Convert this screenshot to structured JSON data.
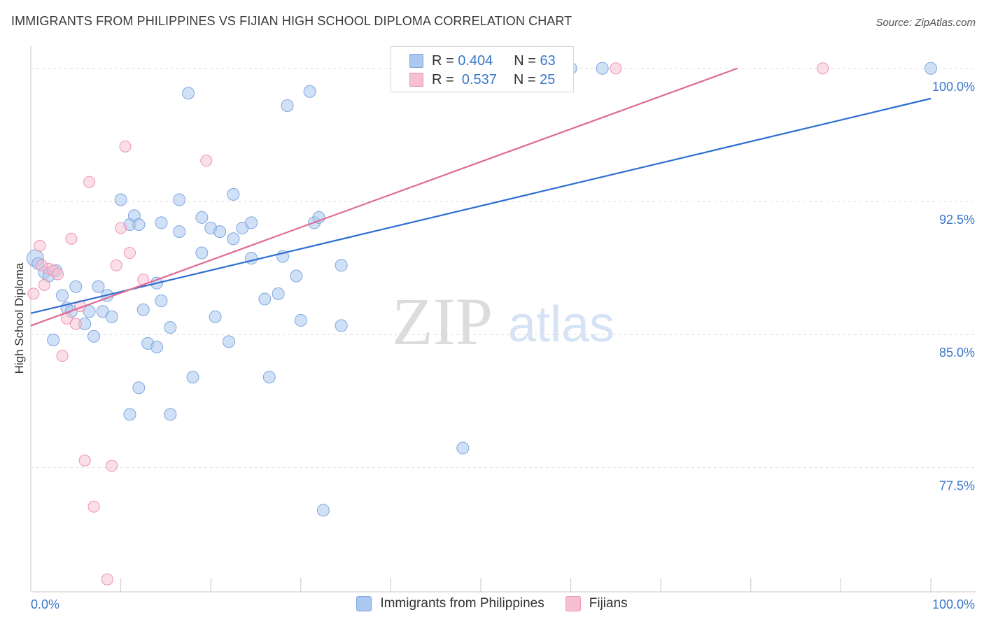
{
  "title": "IMMIGRANTS FROM PHILIPPINES VS FIJIAN HIGH SCHOOL DIPLOMA CORRELATION CHART",
  "source": "Source: ZipAtlas.com",
  "watermark": {
    "zip": "ZIP",
    "atlas": "atlas"
  },
  "legend": {
    "r_label": "R =",
    "n_label": "N =",
    "series1": {
      "r": "0.404",
      "n": "63"
    },
    "series2": {
      "r": "0.537",
      "n": "25"
    }
  },
  "colors": {
    "blue_fill": "#aac8f0",
    "blue_stroke": "#7fa6dd",
    "blue_line": "#2f6fd0",
    "pink_fill": "#f7c0d2",
    "pink_stroke": "#ec93b3",
    "pink_line": "#e06a93",
    "tick_label": "#3a78c9",
    "grid": "#dddddd"
  },
  "chart_data": {
    "type": "scatter",
    "title": "IMMIGRANTS FROM PHILIPPINES VS FIJIAN HIGH SCHOOL DIPLOMA CORRELATION CHART",
    "xlabel": "",
    "ylabel": "High School Diploma",
    "xlim": [
      0,
      100
    ],
    "ylim": [
      70.5,
      100.7
    ],
    "x_tick_labels": [
      "0.0%",
      "100.0%"
    ],
    "y_ticks": [
      77.5,
      85.0,
      92.5,
      100.0
    ],
    "y_tick_labels": [
      "77.5%",
      "85.0%",
      "92.5%",
      "100.0%"
    ],
    "grid": true,
    "legend_position": "top-center",
    "series": [
      {
        "name": "Immigrants from Philippines",
        "r": 0.404,
        "n": 63,
        "trend": {
          "x": [
            0,
            100
          ],
          "y": [
            86.2,
            98.3
          ]
        },
        "points": [
          {
            "x": 0.5,
            "y": 89.3,
            "big": true
          },
          {
            "x": 1.5,
            "y": 88.5
          },
          {
            "x": 2.0,
            "y": 88.3
          },
          {
            "x": 2.8,
            "y": 88.6
          },
          {
            "x": 3.5,
            "y": 87.2
          },
          {
            "x": 4.0,
            "y": 86.5
          },
          {
            "x": 4.5,
            "y": 86.3
          },
          {
            "x": 5.0,
            "y": 87.7
          },
          {
            "x": 6.0,
            "y": 85.6
          },
          {
            "x": 6.5,
            "y": 86.3
          },
          {
            "x": 7.0,
            "y": 84.9
          },
          {
            "x": 7.5,
            "y": 87.7
          },
          {
            "x": 8.0,
            "y": 86.3
          },
          {
            "x": 8.5,
            "y": 87.2
          },
          {
            "x": 9.0,
            "y": 86.0
          },
          {
            "x": 2.5,
            "y": 84.7
          },
          {
            "x": 10.0,
            "y": 92.6
          },
          {
            "x": 11.0,
            "y": 91.2
          },
          {
            "x": 11.5,
            "y": 91.7
          },
          {
            "x": 12.0,
            "y": 91.2
          },
          {
            "x": 12.5,
            "y": 86.4
          },
          {
            "x": 14.0,
            "y": 87.9
          },
          {
            "x": 14.5,
            "y": 86.9
          },
          {
            "x": 14.5,
            "y": 91.3
          },
          {
            "x": 15.5,
            "y": 85.4
          },
          {
            "x": 13.0,
            "y": 84.5
          },
          {
            "x": 14.0,
            "y": 84.3
          },
          {
            "x": 11.0,
            "y": 80.5
          },
          {
            "x": 12.0,
            "y": 82.0
          },
          {
            "x": 15.5,
            "y": 80.5
          },
          {
            "x": 16.5,
            "y": 92.6
          },
          {
            "x": 16.5,
            "y": 90.8
          },
          {
            "x": 17.5,
            "y": 98.6
          },
          {
            "x": 18.0,
            "y": 82.6
          },
          {
            "x": 19.0,
            "y": 91.6
          },
          {
            "x": 19.0,
            "y": 89.6
          },
          {
            "x": 20.0,
            "y": 91.0
          },
          {
            "x": 20.5,
            "y": 86.0
          },
          {
            "x": 21.0,
            "y": 90.8
          },
          {
            "x": 22.0,
            "y": 84.6
          },
          {
            "x": 22.5,
            "y": 92.9
          },
          {
            "x": 22.5,
            "y": 90.4
          },
          {
            "x": 23.5,
            "y": 91.0
          },
          {
            "x": 24.5,
            "y": 89.3
          },
          {
            "x": 24.5,
            "y": 91.3
          },
          {
            "x": 26.0,
            "y": 87.0
          },
          {
            "x": 26.5,
            "y": 82.6
          },
          {
            "x": 27.5,
            "y": 87.3
          },
          {
            "x": 28.0,
            "y": 89.4
          },
          {
            "x": 28.5,
            "y": 97.9
          },
          {
            "x": 29.5,
            "y": 88.3
          },
          {
            "x": 30.0,
            "y": 85.8
          },
          {
            "x": 31.0,
            "y": 98.7
          },
          {
            "x": 31.5,
            "y": 91.3
          },
          {
            "x": 32.0,
            "y": 91.6
          },
          {
            "x": 32.5,
            "y": 75.1
          },
          {
            "x": 34.5,
            "y": 88.9
          },
          {
            "x": 34.5,
            "y": 85.5
          },
          {
            "x": 48.0,
            "y": 78.6
          },
          {
            "x": 60.0,
            "y": 100.0
          },
          {
            "x": 63.5,
            "y": 100.0
          },
          {
            "x": 100.0,
            "y": 100.0
          },
          {
            "x": 0.8,
            "y": 89.0
          }
        ]
      },
      {
        "name": "Fijians",
        "r": 0.537,
        "n": 25,
        "trend": {
          "x": [
            0,
            78.5
          ],
          "y": [
            85.5,
            100.0
          ]
        },
        "points": [
          {
            "x": 0.3,
            "y": 87.3
          },
          {
            "x": 1.0,
            "y": 90.0
          },
          {
            "x": 1.5,
            "y": 87.8
          },
          {
            "x": 2.0,
            "y": 88.7
          },
          {
            "x": 2.5,
            "y": 88.6
          },
          {
            "x": 3.0,
            "y": 88.4
          },
          {
            "x": 3.5,
            "y": 83.8
          },
          {
            "x": 4.0,
            "y": 85.9
          },
          {
            "x": 4.5,
            "y": 90.4
          },
          {
            "x": 5.0,
            "y": 85.6
          },
          {
            "x": 5.5,
            "y": 86.6
          },
          {
            "x": 6.0,
            "y": 77.9
          },
          {
            "x": 6.5,
            "y": 93.6
          },
          {
            "x": 7.0,
            "y": 75.3
          },
          {
            "x": 8.5,
            "y": 71.2
          },
          {
            "x": 9.0,
            "y": 77.6
          },
          {
            "x": 9.5,
            "y": 88.9
          },
          {
            "x": 10.0,
            "y": 91.0
          },
          {
            "x": 10.5,
            "y": 95.6
          },
          {
            "x": 11.0,
            "y": 89.6
          },
          {
            "x": 12.5,
            "y": 88.1
          },
          {
            "x": 19.5,
            "y": 94.8
          },
          {
            "x": 65.0,
            "y": 100.0
          },
          {
            "x": 88.0,
            "y": 100.0
          },
          {
            "x": 1.2,
            "y": 88.9
          }
        ]
      }
    ]
  },
  "bottom_legend": {
    "item1": "Immigrants from Philippines",
    "item2": "Fijians"
  }
}
